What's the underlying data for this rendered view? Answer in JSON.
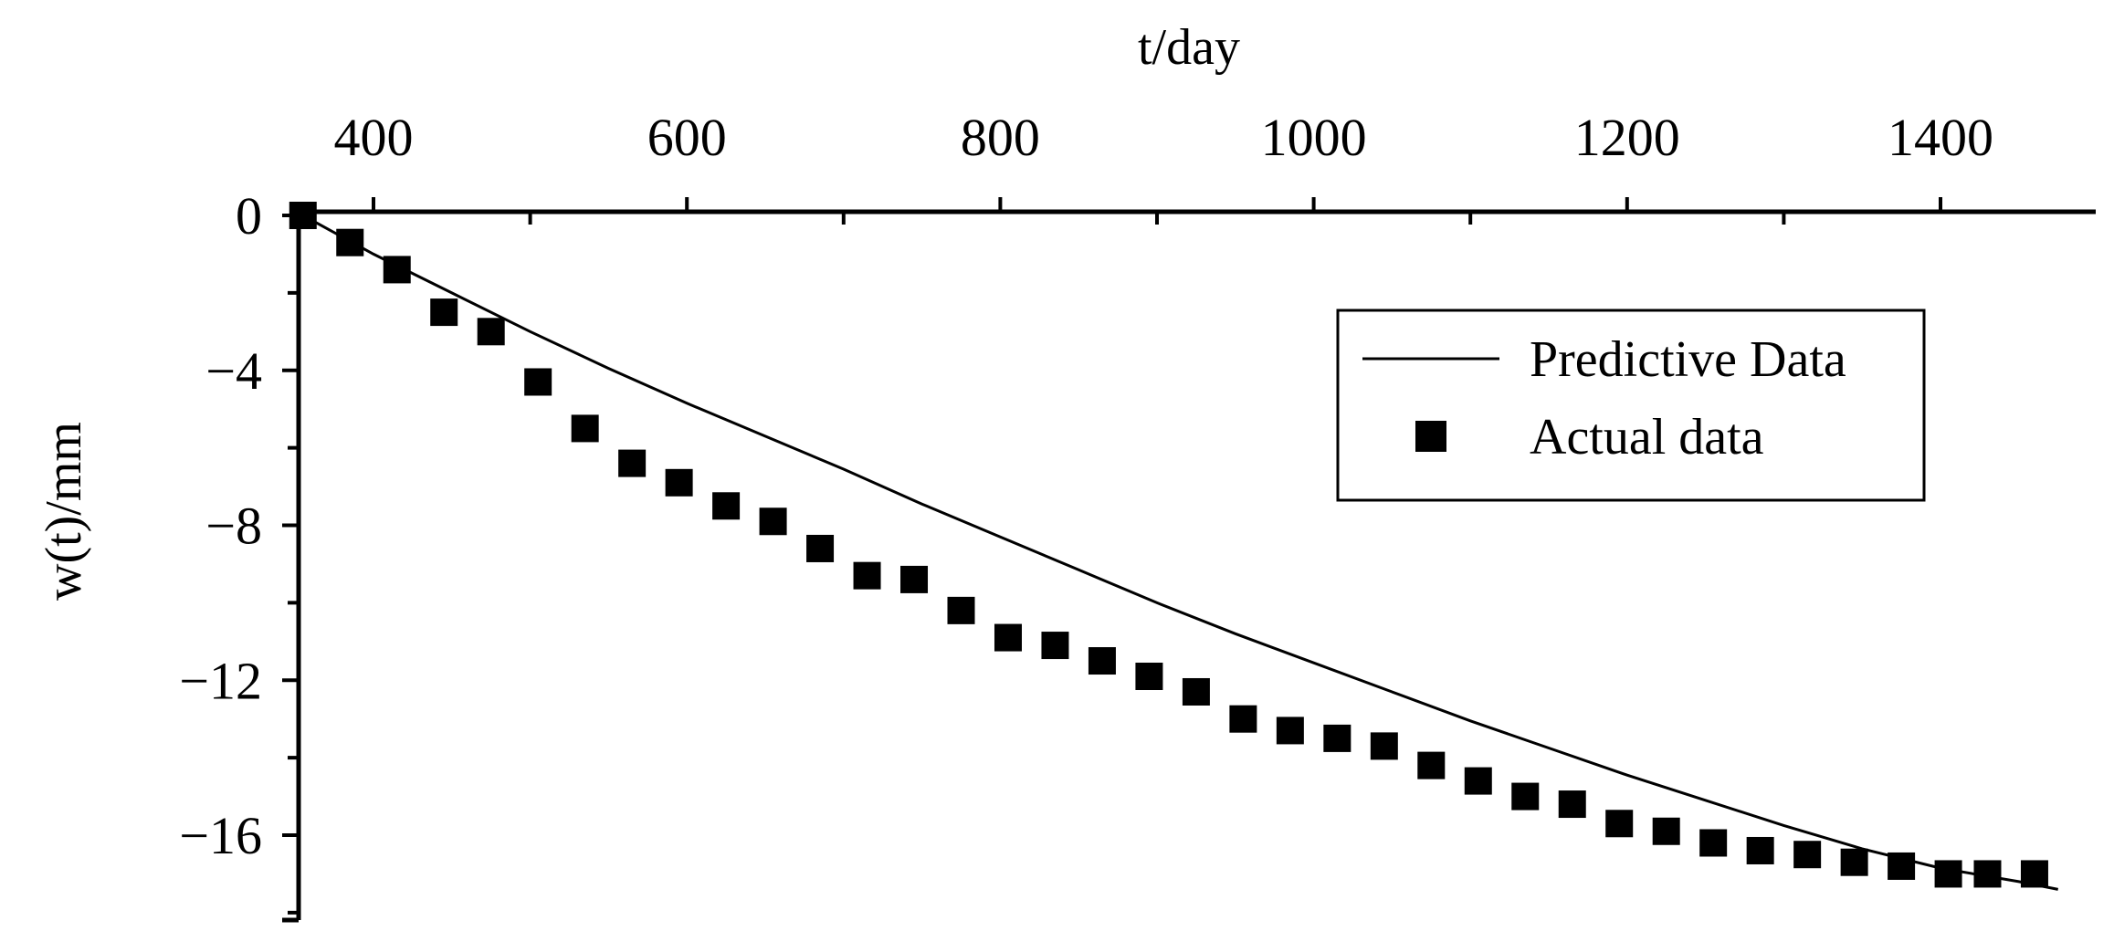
{
  "chart_data": {
    "type": "scatter",
    "xlabel": "t/day",
    "ylabel": "w(t)/mm",
    "xlim": [
      355,
      1480
    ],
    "ylim": [
      -18,
      0
    ],
    "x_ticks": [
      400,
      600,
      800,
      1000,
      1200,
      1400
    ],
    "y_ticks": [
      0,
      -4,
      -8,
      -12,
      -16
    ],
    "x_axis_position": "top",
    "y_axis_inverted": false,
    "grid": false,
    "legend_position": "top-right",
    "series": [
      {
        "name": "Predictive Data",
        "kind": "line",
        "color": "#000000",
        "x": [
          355,
          400,
          450,
          500,
          550,
          600,
          650,
          700,
          750,
          800,
          850,
          900,
          950,
          1000,
          1050,
          1100,
          1150,
          1200,
          1250,
          1300,
          1350,
          1400,
          1450,
          1475
        ],
        "y": [
          0,
          -1.0,
          -2.0,
          -3.0,
          -3.95,
          -4.85,
          -5.7,
          -6.55,
          -7.45,
          -8.3,
          -9.15,
          -10.0,
          -10.8,
          -11.55,
          -12.3,
          -13.05,
          -13.75,
          -14.45,
          -15.1,
          -15.75,
          -16.35,
          -16.85,
          -17.2,
          -17.4
        ]
      },
      {
        "name": "Actual data",
        "kind": "scatter",
        "marker": "square",
        "color": "#000000",
        "x": [
          355,
          385,
          415,
          445,
          475,
          505,
          535,
          565,
          595,
          625,
          655,
          685,
          715,
          745,
          775,
          805,
          835,
          865,
          895,
          925,
          955,
          985,
          1015,
          1045,
          1075,
          1105,
          1135,
          1165,
          1195,
          1225,
          1255,
          1285,
          1315,
          1345,
          1375,
          1405,
          1430,
          1460
        ],
        "y": [
          0,
          -0.7,
          -1.4,
          -2.5,
          -3.0,
          -4.3,
          -5.5,
          -6.4,
          -6.9,
          -7.5,
          -7.9,
          -8.6,
          -9.3,
          -9.4,
          -10.2,
          -10.9,
          -11.1,
          -11.5,
          -11.9,
          -12.3,
          -13.0,
          -13.3,
          -13.5,
          -13.7,
          -14.2,
          -14.6,
          -15.0,
          -15.2,
          -15.7,
          -15.9,
          -16.2,
          -16.4,
          -16.5,
          -16.7,
          -16.8,
          -17.0,
          -17.0,
          -17.0
        ]
      }
    ]
  }
}
